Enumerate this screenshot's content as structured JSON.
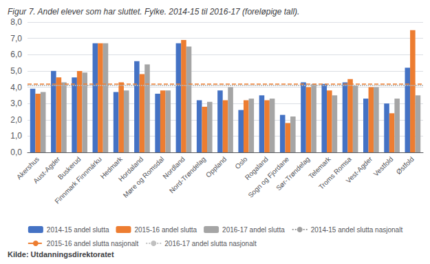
{
  "chart_data": {
    "type": "bar",
    "title": "Figur 7. Andel elever som har sluttet. Fylke. 2014-15 til 2016-17 (foreløpige tall).",
    "annotations": [
      "Kilde: Utdanningsdirektoratet"
    ],
    "categories": [
      "Akershus",
      "Aust-Agder",
      "Buskerud",
      "Finnmark Finnmárku",
      "Hedmark",
      "Hordaland",
      "Møre og Romsdal",
      "Nordland",
      "Nord-Trøndelag",
      "Oppland",
      "Oslo",
      "Rogaland",
      "Sogn og Fjordane",
      "Sør-Trøndelag",
      "Telemark",
      "Troms Romsa",
      "Vest-Agder",
      "Vestfold",
      "Østfold"
    ],
    "series": [
      {
        "name": "2014-15 andel slutta",
        "type": "bar",
        "color": "#4472C4",
        "values": [
          3.9,
          5.0,
          4.6,
          6.7,
          3.7,
          5.6,
          3.6,
          6.7,
          3.2,
          3.8,
          2.6,
          3.5,
          2.3,
          4.3,
          4.2,
          4.3,
          3.3,
          3.0,
          5.2
        ]
      },
      {
        "name": "2015-16 andel slutta",
        "type": "bar",
        "color": "#ED7D31",
        "values": [
          3.6,
          4.6,
          5.0,
          6.7,
          4.3,
          4.8,
          3.8,
          6.9,
          2.8,
          3.2,
          3.2,
          3.2,
          1.8,
          4.0,
          3.8,
          4.5,
          4.0,
          2.4,
          7.5
        ]
      },
      {
        "name": "2016-17 andel slutta",
        "type": "bar",
        "color": "#A5A5A5",
        "values": [
          3.7,
          4.3,
          4.9,
          6.7,
          3.8,
          5.4,
          3.8,
          6.5,
          3.1,
          4.0,
          3.3,
          3.3,
          2.2,
          4.2,
          3.5,
          4.1,
          4.0,
          3.3,
          3.5
        ]
      },
      {
        "name": "2014-15 andel slutta nasjonalt",
        "type": "hline",
        "color": "#A0A0A0",
        "line_style": "dotted",
        "value": 4.1
      },
      {
        "name": "2015-16 andel slutta nasjonalt",
        "type": "hline",
        "color": "#ED7D31",
        "line_style": "dashed",
        "value": 4.2
      },
      {
        "name": "2016-17 andel slutta nasjonalt",
        "type": "hline",
        "color": "#C0C0C0",
        "line_style": "dotted",
        "value": 4.1
      }
    ],
    "ylim": [
      0,
      8.0
    ],
    "yticks": [
      {
        "value": 0.0,
        "label": "0,0"
      },
      {
        "value": 1.0,
        "label": "1,0"
      },
      {
        "value": 2.0,
        "label": "2,0"
      },
      {
        "value": 3.0,
        "label": "3,0"
      },
      {
        "value": 4.0,
        "label": "4,0"
      },
      {
        "value": 5.0,
        "label": "5,0"
      },
      {
        "value": 6.0,
        "label": "6,0"
      },
      {
        "value": 7.0,
        "label": "7,0"
      },
      {
        "value": 8.0,
        "label": "8,0"
      }
    ],
    "grid": true,
    "legend": "bottom"
  }
}
